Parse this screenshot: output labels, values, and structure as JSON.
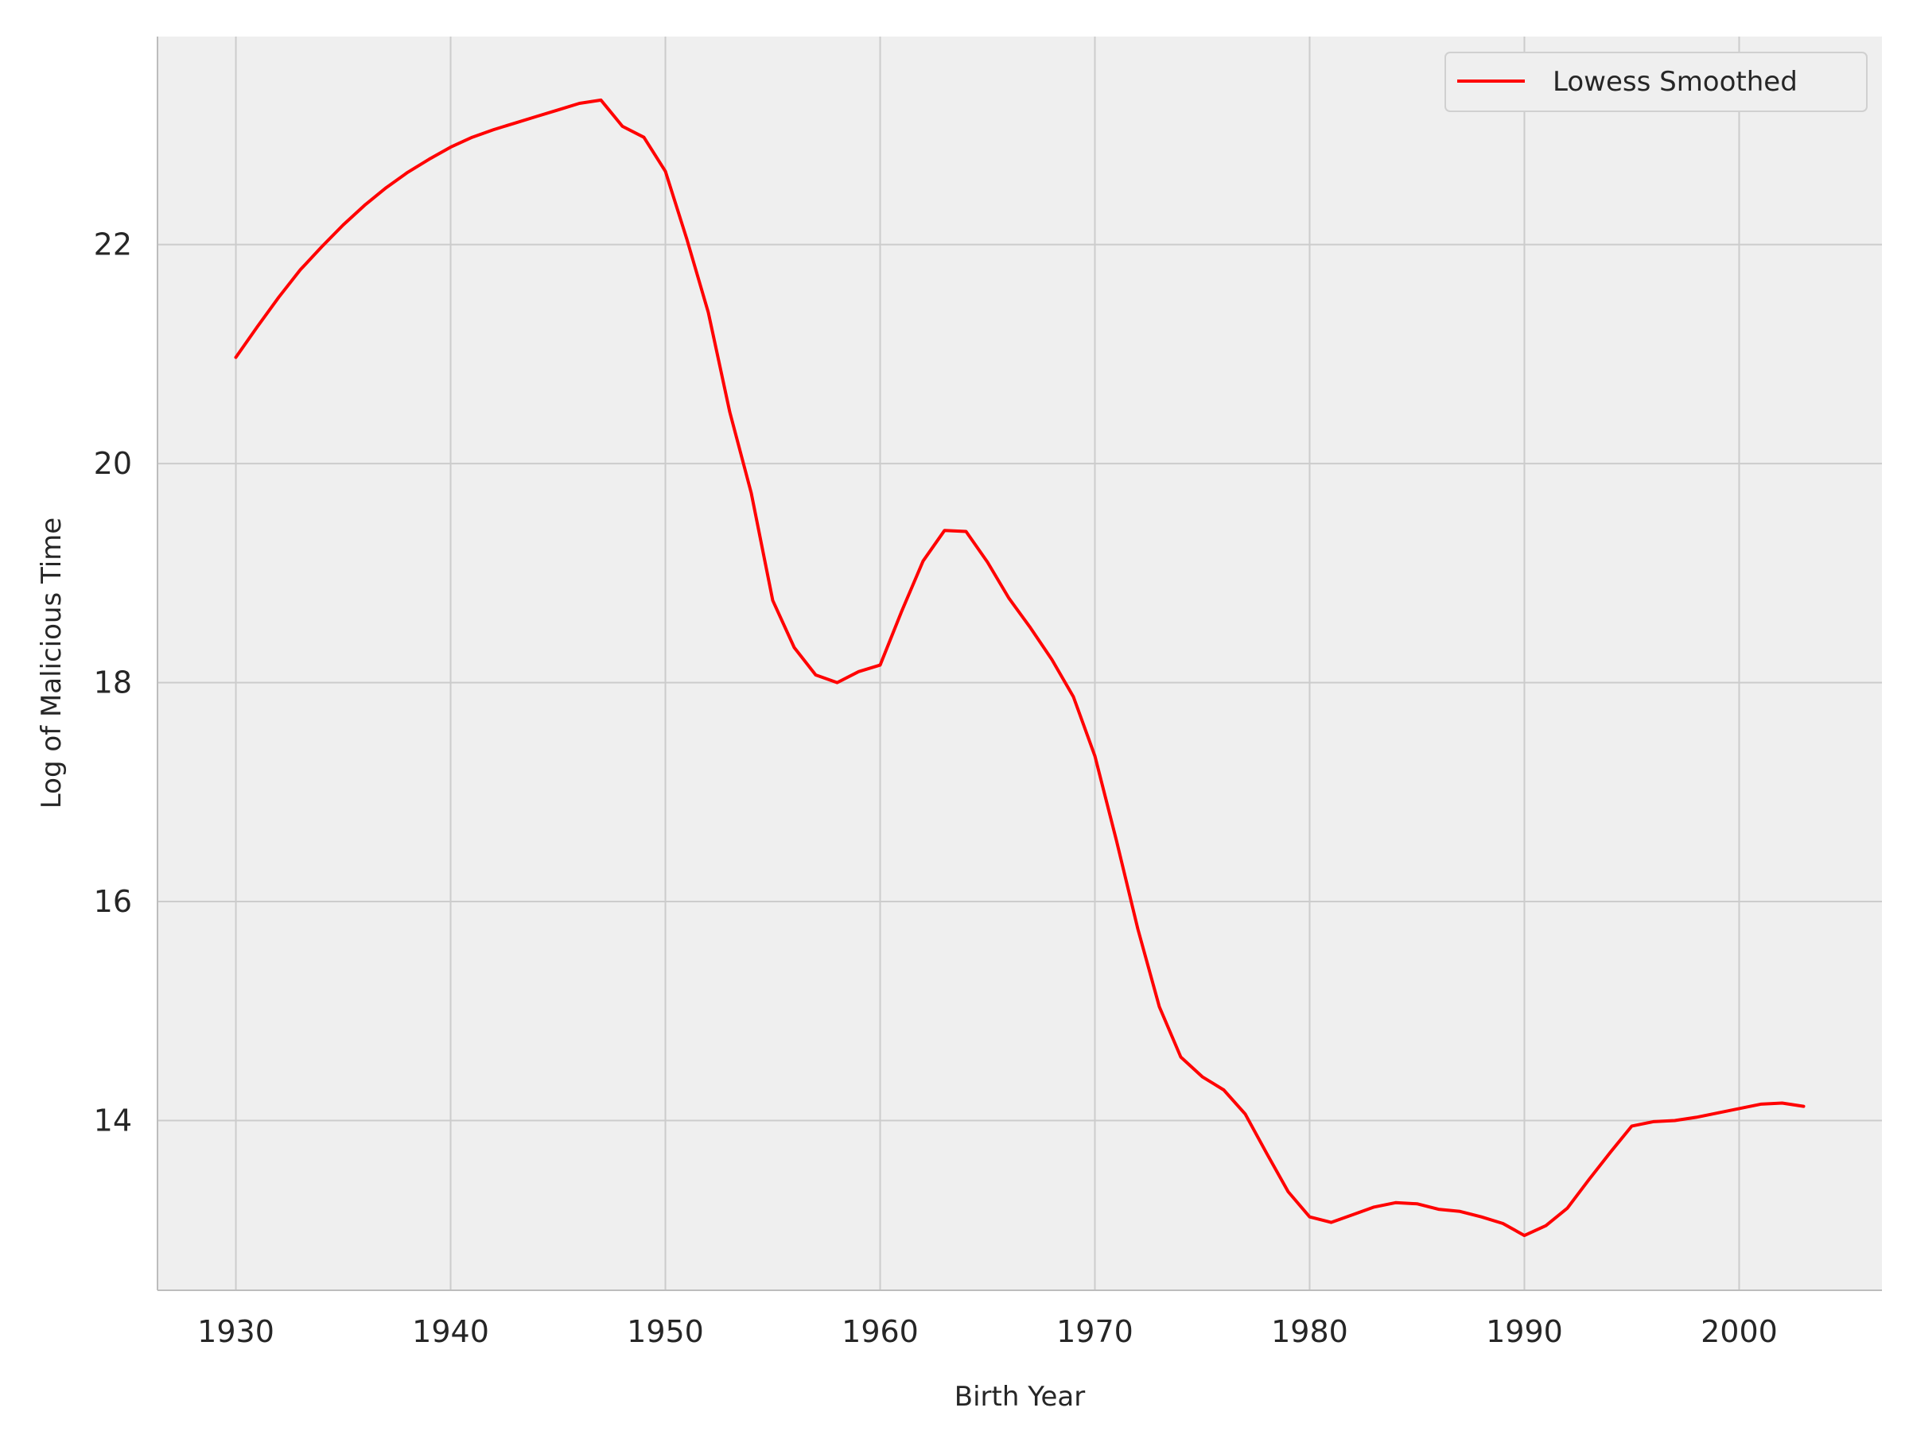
{
  "chart_data": {
    "type": "line",
    "title": "",
    "xlabel": "Birth Year",
    "ylabel": "Log of Malicious Time",
    "xlim": [
      1926.35,
      2006.65
    ],
    "ylim": [
      12.45,
      23.9
    ],
    "x_ticks": [
      1930,
      1940,
      1950,
      1960,
      1970,
      1980,
      1990,
      2000
    ],
    "y_ticks": [
      14,
      16,
      18,
      20,
      22
    ],
    "grid": true,
    "legend_position": "top-right",
    "colors": {
      "line": "#ff0000",
      "plot_background": "#efefef",
      "grid": "#cccccc",
      "axis": "#bdbdbd"
    },
    "series": [
      {
        "name": "Lowess Smoothed",
        "x": [
          1930,
          1931,
          1932,
          1933,
          1934,
          1935,
          1936,
          1937,
          1938,
          1939,
          1940,
          1941,
          1942,
          1943,
          1944,
          1945,
          1946,
          1947,
          1948,
          1949,
          1950,
          1951,
          1952,
          1953,
          1954,
          1955,
          1956,
          1957,
          1958,
          1959,
          1960,
          1961,
          1962,
          1963,
          1964,
          1965,
          1966,
          1967,
          1968,
          1969,
          1970,
          1971,
          1972,
          1973,
          1974,
          1975,
          1976,
          1977,
          1978,
          1979,
          1980,
          1981,
          1982,
          1983,
          1984,
          1985,
          1986,
          1987,
          1988,
          1989,
          1990,
          1991,
          1992,
          1993,
          1994,
          1995,
          1996,
          1997,
          1998,
          1999,
          2000,
          2001,
          2002,
          2003
        ],
        "y": [
          20.97,
          21.25,
          21.52,
          21.77,
          21.98,
          22.18,
          22.36,
          22.52,
          22.66,
          22.78,
          22.89,
          22.98,
          23.05,
          23.11,
          23.17,
          23.23,
          23.29,
          23.32,
          23.08,
          22.98,
          22.67,
          22.05,
          21.38,
          20.47,
          19.73,
          18.75,
          18.32,
          18.07,
          18.0,
          18.1,
          18.16,
          18.65,
          19.11,
          19.39,
          19.38,
          19.1,
          18.77,
          18.5,
          18.21,
          17.87,
          17.33,
          16.56,
          15.75,
          15.04,
          14.58,
          14.4,
          14.28,
          14.06,
          13.7,
          13.35,
          13.12,
          13.07,
          13.14,
          13.21,
          13.25,
          13.24,
          13.19,
          13.17,
          13.12,
          13.06,
          12.95,
          13.04,
          13.2,
          13.46,
          13.71,
          13.95,
          13.99,
          14.0,
          14.03,
          14.07,
          14.11,
          14.15,
          14.16,
          14.13
        ]
      }
    ]
  }
}
